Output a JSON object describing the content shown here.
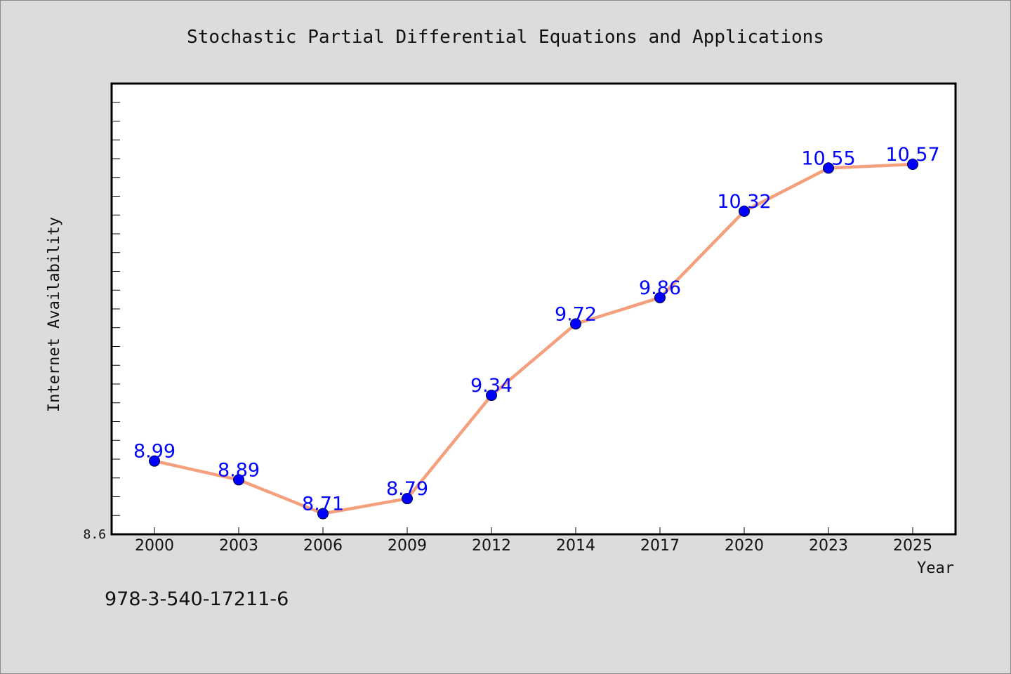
{
  "chart_data": {
    "type": "line",
    "title": "Stochastic Partial Differential Equations and Applications",
    "xlabel": "Year",
    "ylabel": "Internet Availability",
    "categories": [
      "2000",
      "2003",
      "2006",
      "2009",
      "2012",
      "2014",
      "2017",
      "2020",
      "2023",
      "2025"
    ],
    "values": [
      8.99,
      8.89,
      8.71,
      8.79,
      9.34,
      9.72,
      9.86,
      10.32,
      10.55,
      10.57
    ],
    "data_labels": [
      "8.99",
      "8.89",
      "8.71",
      "8.79",
      "9.34",
      "9.72",
      "9.86",
      "10.32",
      "10.55",
      "10.57"
    ],
    "ylim": [
      8.6,
      11.0
    ],
    "y_tick_labels": [
      "8.6"
    ],
    "grid": false,
    "legend": "none",
    "annotation": "978-3-540-17211-6",
    "colors": {
      "line": "#f4a07c",
      "marker": "#0000ff",
      "data_label": "#0000ff",
      "background": "#dcdcdc",
      "plot_background": "#ffffff"
    }
  }
}
